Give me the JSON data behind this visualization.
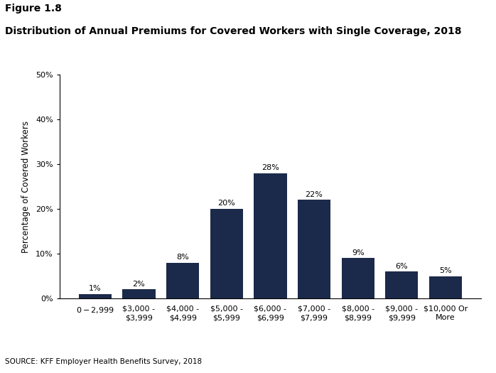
{
  "figure_label": "Figure 1.8",
  "title": "Distribution of Annual Premiums for Covered Workers with Single Coverage, 2018",
  "categories": [
    "$0 - $2,999",
    "$3,000 -\n$3,999",
    "$4,000 -\n$4,999",
    "$5,000 -\n$5,999",
    "$6,000 -\n$6,999",
    "$7,000 -\n$7,999",
    "$8,000 -\n$8,999",
    "$9,000 -\n$9,999",
    "$10,000 Or\nMore"
  ],
  "values": [
    1,
    2,
    8,
    20,
    28,
    22,
    9,
    6,
    5
  ],
  "bar_color": "#1b2a4a",
  "ylabel": "Percentage of Covered Workers",
  "ylim": [
    0,
    50
  ],
  "yticks": [
    0,
    10,
    20,
    30,
    40,
    50
  ],
  "source": "SOURCE: KFF Employer Health Benefits Survey, 2018",
  "background_color": "#ffffff",
  "tick_label_fontsize": 8,
  "bar_label_fontsize": 8,
  "title_fontsize": 10,
  "figure_label_fontsize": 10,
  "ylabel_fontsize": 8.5,
  "source_fontsize": 7.5
}
